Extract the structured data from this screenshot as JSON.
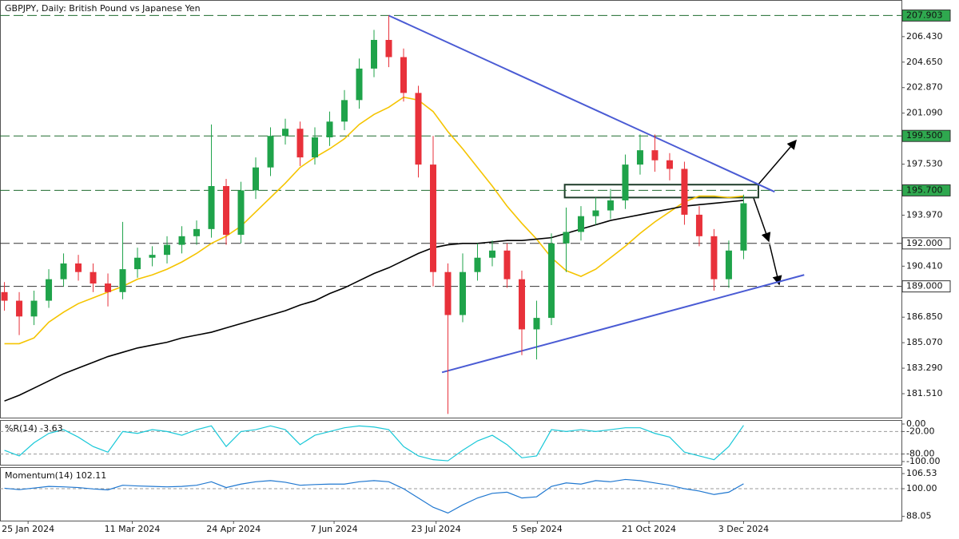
{
  "chart_data": [
    {
      "type": "candlestick",
      "title": "GBPJPY, Daily:  British Pound vs Japanese Yen",
      "x": [
        0,
        1,
        2,
        3,
        4,
        5,
        6,
        7,
        8,
        9,
        10,
        11,
        12,
        13,
        14,
        15,
        16,
        17,
        18,
        19,
        20,
        21,
        22,
        23,
        24,
        25,
        26,
        27,
        28,
        29,
        30,
        31,
        32,
        33,
        34,
        35,
        36,
        37,
        38,
        39,
        40,
        41,
        42,
        43,
        44,
        45,
        46,
        47,
        48,
        49,
        50
      ],
      "open": [
        188.6,
        188.0,
        186.9,
        188.0,
        189.5,
        190.6,
        190.0,
        189.2,
        188.6,
        190.2,
        191.0,
        191.2,
        191.9,
        192.5,
        193.0,
        196.0,
        192.6,
        195.7,
        197.3,
        199.5,
        200.0,
        198.0,
        199.4,
        200.5,
        202.0,
        204.2,
        206.2,
        205.0,
        202.5,
        197.5,
        190.0,
        187.0,
        190.0,
        191.0,
        191.5,
        189.5,
        186.0,
        186.8,
        192.0,
        192.8,
        193.9,
        194.3,
        195.0,
        197.5,
        198.5,
        197.8,
        197.2,
        194.0,
        192.5,
        189.5,
        191.5
      ],
      "high": [
        189.3,
        188.6,
        188.7,
        190.2,
        191.3,
        191.2,
        190.6,
        189.9,
        193.5,
        191.7,
        191.8,
        192.5,
        193.2,
        193.6,
        200.3,
        196.5,
        196.3,
        198.0,
        200.1,
        200.7,
        200.5,
        200.1,
        201.2,
        202.7,
        204.9,
        206.9,
        207.9,
        205.6,
        203.0,
        199.5,
        190.6,
        191.3,
        192.0,
        192.2,
        192.0,
        190.1,
        188.0,
        192.7,
        194.5,
        194.6,
        195.2,
        195.8,
        198.2,
        199.6,
        199.6,
        198.3,
        197.7,
        194.6,
        193.0,
        192.2,
        195.4
      ],
      "low": [
        187.3,
        185.6,
        186.3,
        187.5,
        189.0,
        189.4,
        188.6,
        187.6,
        188.1,
        189.6,
        190.4,
        190.6,
        191.3,
        191.9,
        192.4,
        191.9,
        192.0,
        195.1,
        196.7,
        198.9,
        197.4,
        197.5,
        198.8,
        199.9,
        201.4,
        203.6,
        204.3,
        201.9,
        196.6,
        189.0,
        180.1,
        186.5,
        189.4,
        190.4,
        188.9,
        184.2,
        183.9,
        186.3,
        190.0,
        192.2,
        193.3,
        193.7,
        194.4,
        196.8,
        197.0,
        196.4,
        193.3,
        191.8,
        188.7,
        188.9,
        190.9
      ],
      "close": [
        188.0,
        186.9,
        188.0,
        189.5,
        190.6,
        190.0,
        189.2,
        188.6,
        190.2,
        191.0,
        191.2,
        191.9,
        192.5,
        193.0,
        196.0,
        192.6,
        195.7,
        197.3,
        199.5,
        200.0,
        198.0,
        199.4,
        200.5,
        202.0,
        204.2,
        206.2,
        205.0,
        202.5,
        197.5,
        190.0,
        187.0,
        190.0,
        191.0,
        191.5,
        189.5,
        186.0,
        186.8,
        192.0,
        192.8,
        193.9,
        194.3,
        195.0,
        197.5,
        198.5,
        197.8,
        197.2,
        194.0,
        192.5,
        189.5,
        191.5,
        194.8
      ],
      "up_color": "#1fa34a",
      "down_color": "#e8313a",
      "overlays": [
        {
          "color": "#f5c400",
          "values": [
            185.0,
            185.0,
            185.4,
            186.5,
            187.2,
            187.8,
            188.2,
            188.6,
            189.0,
            189.5,
            189.8,
            190.2,
            190.7,
            191.3,
            192.0,
            192.5,
            193.2,
            194.2,
            195.2,
            196.2,
            197.3,
            198.0,
            198.6,
            199.3,
            200.3,
            201.0,
            201.5,
            202.2,
            202.0,
            201.2,
            199.8,
            198.6,
            197.3,
            196.0,
            194.6,
            193.4,
            192.3,
            191.0,
            190.1,
            189.7,
            190.2,
            191.0,
            191.8,
            192.7,
            193.5,
            194.2,
            194.9,
            195.3,
            195.3,
            195.2,
            195.3
          ]
        },
        {
          "color": "#000000",
          "values": [
            181.0,
            181.4,
            181.9,
            182.4,
            182.9,
            183.3,
            183.7,
            184.1,
            184.4,
            184.7,
            184.9,
            185.1,
            185.4,
            185.6,
            185.8,
            186.1,
            186.4,
            186.7,
            187.0,
            187.3,
            187.7,
            188.0,
            188.5,
            188.9,
            189.4,
            189.9,
            190.3,
            190.8,
            191.3,
            191.7,
            191.9,
            192.0,
            192.0,
            192.1,
            192.2,
            192.2,
            192.3,
            192.4,
            192.7,
            193.0,
            193.3,
            193.6,
            193.8,
            194.0,
            194.2,
            194.4,
            194.6,
            194.7,
            194.8,
            194.9,
            195.0
          ]
        }
      ],
      "levels": [
        {
          "value": 207.903,
          "label": "207.903",
          "color": "#2fa84f",
          "line_color": "#1e6b2e"
        },
        {
          "value": 199.5,
          "label": "199.500",
          "color": "#2fa84f",
          "line_color": "#1e6b2e"
        },
        {
          "value": 195.7,
          "label": "195.700",
          "color": "#2fa84f",
          "line_color": "#1e6b2e"
        },
        {
          "value": 192.0,
          "label": "192.000",
          "color": "#ffffff",
          "line_color": "#333333"
        },
        {
          "value": 189.0,
          "label": "189.000",
          "color": "#ffffff",
          "line_color": "#333333"
        }
      ],
      "trendlines": [
        {
          "x": [
            26,
            52.1
          ],
          "y": [
            207.9,
            195.6
          ],
          "color": "#4a5bd4"
        },
        {
          "x": [
            29.6,
            54.1
          ],
          "y": [
            183.0,
            189.8
          ],
          "color": "#4a5bd4"
        }
      ],
      "zone": {
        "x": [
          37.9,
          51.0
        ],
        "y": [
          195.2,
          196.1
        ]
      },
      "xlim": [
        -0.3,
        60.68
      ],
      "xticks": [
        {
          "value": 1.6,
          "label": "25 Jan 2024"
        },
        {
          "value": 8.65,
          "label": "11 Mar 2024"
        },
        {
          "value": 15.5,
          "label": "24 Apr 2024"
        },
        {
          "value": 22.3,
          "label": "7 Jun 2024"
        },
        {
          "value": 29.2,
          "label": "23 Jul 2024"
        },
        {
          "value": 36.05,
          "label": "5 Sep 2024"
        },
        {
          "value": 43.6,
          "label": "21 Oct 2024"
        },
        {
          "value": 50,
          "label": "3 Dec 2024"
        }
      ],
      "ylim": [
        179.84,
        208.93
      ],
      "yticks": [
        {
          "value": 181.51,
          "label": "181.510"
        },
        {
          "value": 183.29,
          "label": "183.290"
        },
        {
          "value": 185.07,
          "label": "185.070"
        },
        {
          "value": 186.85,
          "label": "186.850"
        },
        {
          "value": 190.41,
          "label": "190.410"
        },
        {
          "value": 193.97,
          "label": "193.970"
        },
        {
          "value": 197.53,
          "label": "197.530"
        },
        {
          "value": 201.09,
          "label": "201.090"
        },
        {
          "value": 202.87,
          "label": "202.870"
        },
        {
          "value": 204.65,
          "label": "204.650"
        },
        {
          "value": 206.43,
          "label": "206.430"
        }
      ]
    },
    {
      "type": "line",
      "title": "%R(14) -3.63",
      "color": "#19c8d8",
      "values": [
        -70,
        -85,
        -50,
        -25,
        -15,
        -35,
        -60,
        -75,
        -20,
        -25,
        -15,
        -20,
        -30,
        -15,
        -5,
        -60,
        -20,
        -15,
        -5,
        -15,
        -55,
        -30,
        -20,
        -10,
        -5,
        -8,
        -15,
        -60,
        -85,
        -95,
        -98,
        -70,
        -45,
        -30,
        -55,
        -90,
        -85,
        -15,
        -20,
        -15,
        -20,
        -15,
        -10,
        -10,
        -25,
        -35,
        -75,
        -85,
        -95,
        -60,
        -3.63
      ],
      "ylim": [
        -108.5,
        8.5
      ],
      "yticks": [
        {
          "value": 0,
          "label": "0.00"
        },
        {
          "value": -20,
          "label": "-20.00"
        },
        {
          "value": -80,
          "label": "-80.00"
        },
        {
          "value": -100,
          "label": "-100.00"
        }
      ],
      "levels": [
        -20,
        -80
      ]
    },
    {
      "type": "line",
      "title": "Momentum(14) 102.11",
      "color": "#1f77d0",
      "values": [
        100.2,
        99.6,
        100.3,
        101.0,
        100.8,
        100.5,
        99.9,
        99.5,
        101.5,
        101.2,
        101.0,
        100.8,
        101.0,
        101.5,
        103.0,
        100.5,
        102.0,
        103.0,
        103.5,
        102.8,
        101.5,
        101.8,
        102.0,
        102.0,
        103.0,
        103.5,
        103.0,
        100.0,
        96.0,
        92.0,
        89.5,
        93.0,
        96.0,
        98.0,
        98.5,
        96.0,
        96.5,
        101.0,
        102.5,
        102.0,
        103.5,
        103.0,
        104.0,
        103.5,
        102.5,
        101.5,
        100.0,
        99.0,
        97.5,
        98.5,
        102.11
      ],
      "ylim": [
        86.21,
        108.98
      ],
      "yticks": [
        {
          "value": 106.53,
          "label": "106.53"
        },
        {
          "value": 100,
          "label": "100.00"
        },
        {
          "value": 88.05,
          "label": "88.05"
        }
      ],
      "levels": [
        100
      ]
    }
  ]
}
